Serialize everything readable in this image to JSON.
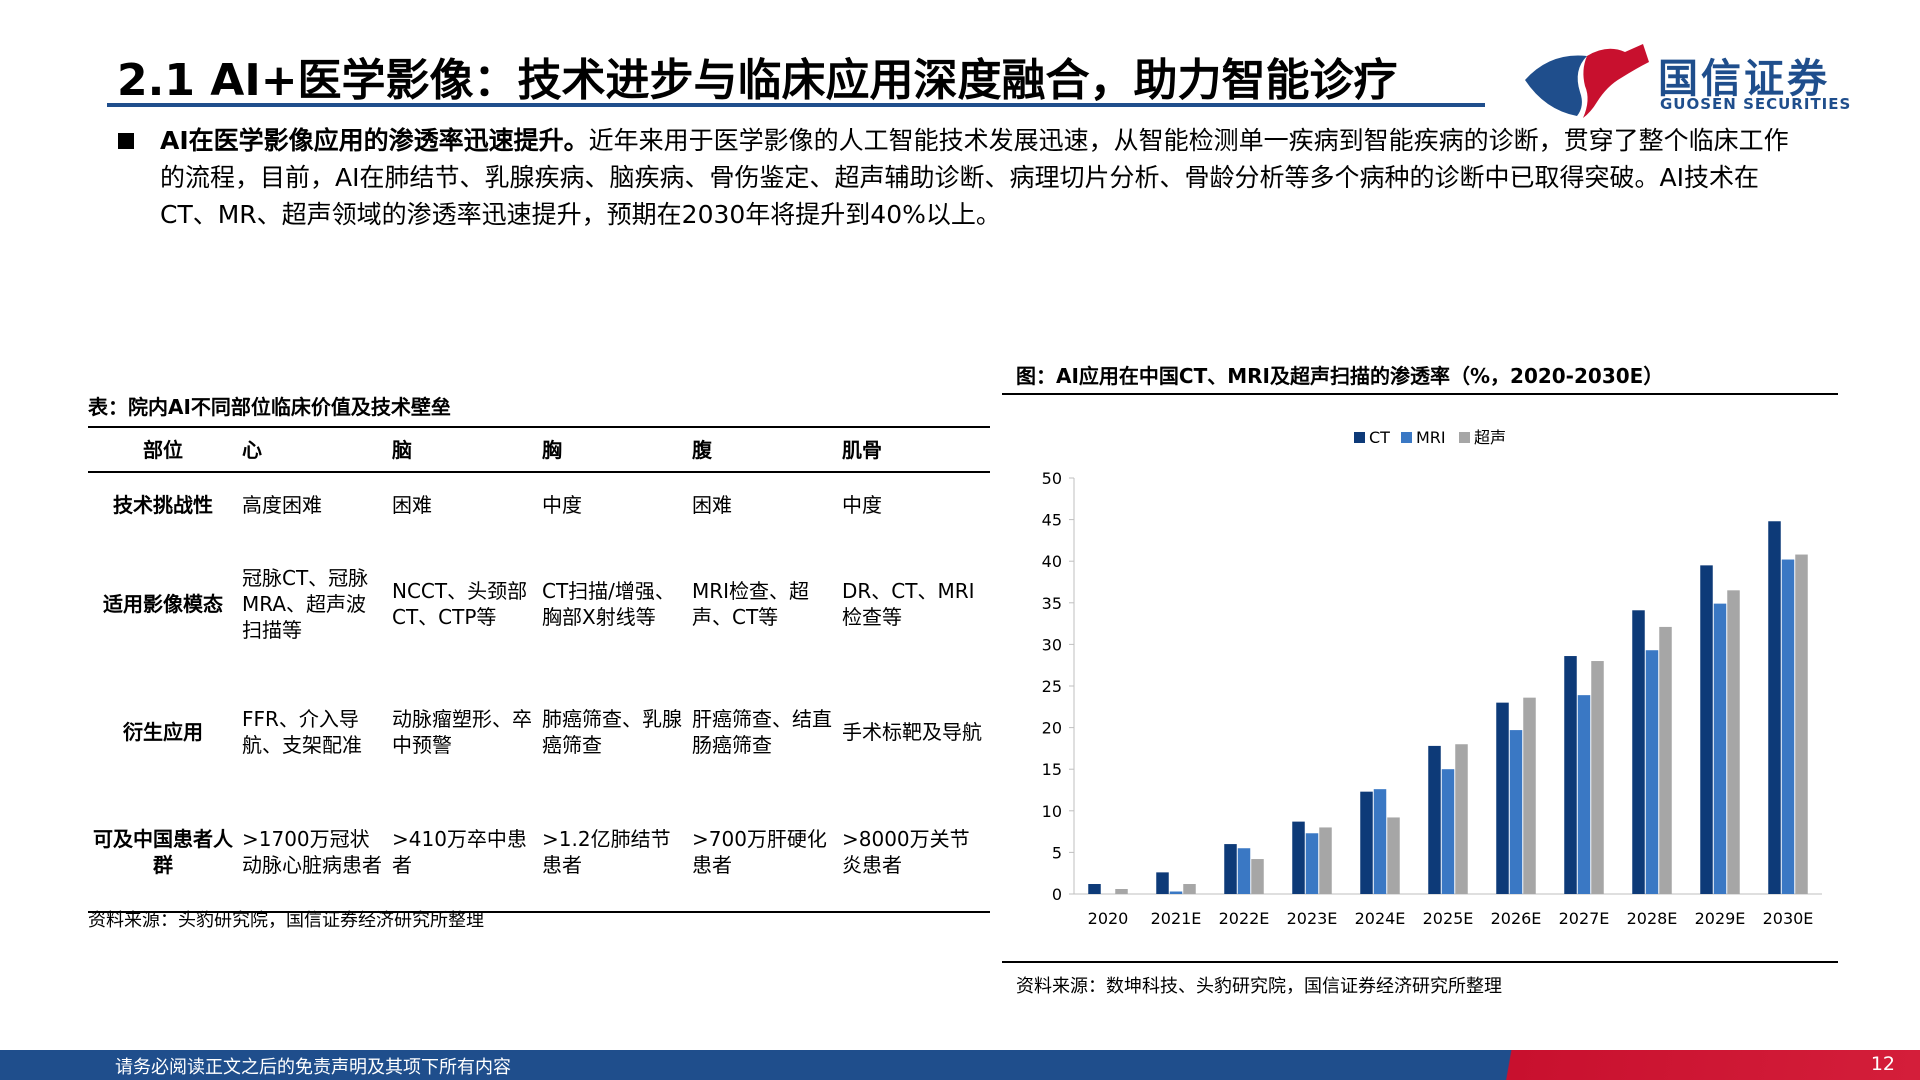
{
  "header": {
    "title": "2.1 AI+医学影像：技术进步与临床应用深度融合，助力智能诊疗",
    "logo_cn": "国信证券",
    "logo_en": "GUOSEN SECURITIES",
    "brand_colors": {
      "blue": "#1f4e8c",
      "red": "#c8102e"
    }
  },
  "intro": {
    "lead": "AI在医学影像应用的渗透率迅速提升。",
    "body": "近年来用于医学影像的人工智能技术发展迅速，从智能检测单一疾病到智能疾病的诊断，贯穿了整个临床工作的流程，目前，AI在肺结节、乳腺疾病、脑疾病、骨伤鉴定、超声辅助诊断、病理切片分析、骨龄分析等多个病种的诊断中已取得突破。AI技术在CT、MR、超声领域的渗透率迅速提升，预期在2030年将提升到40%以上。"
  },
  "table": {
    "title": "表：院内AI不同部位临床价值及技术壁垒",
    "headers": [
      "部位",
      "心",
      "脑",
      "胸",
      "腹",
      "肌骨"
    ],
    "rows": [
      {
        "label": "技术挑战性",
        "cells": [
          "高度困难",
          "困难",
          "中度",
          "困难",
          "中度"
        ]
      },
      {
        "label": "适用影像模态",
        "cells": [
          "冠脉CT、冠脉MRA、超声波扫描等",
          "NCCT、头颈部CT、CTP等",
          "CT扫描/增强、胸部X射线等",
          "MRI检查、超声、CT等",
          "DR、CT、MRI检查等"
        ]
      },
      {
        "label": "衍生应用",
        "cells": [
          "FFR、介入导航、支架配准",
          "动脉瘤塑形、卒中预警",
          "肺癌筛查、乳腺癌筛查",
          "肝癌筛查、结直肠癌筛查",
          "手术标靶及导航"
        ]
      },
      {
        "label": "可及中国患者人群",
        "cells": [
          ">1700万冠状动脉心脏病患者",
          ">410万卒中患者",
          ">1.2亿肺结节患者",
          ">700万肝硬化患者",
          ">8000万关节炎患者"
        ]
      }
    ],
    "source": "资料来源：头豹研究院，国信证券经济研究所整理"
  },
  "chart_data": {
    "type": "bar",
    "title": "图：AI应用在中国CT、MRI及超声扫描的渗透率（%，2020-2030E）",
    "categories": [
      "2020",
      "2021E",
      "2022E",
      "2023E",
      "2024E",
      "2025E",
      "2026E",
      "2027E",
      "2028E",
      "2029E",
      "2030E"
    ],
    "series": [
      {
        "name": "CT",
        "color": "#0d3a78",
        "values": [
          1.2,
          2.6,
          6.0,
          8.7,
          12.3,
          17.8,
          23.0,
          28.6,
          34.1,
          39.5,
          44.8
        ]
      },
      {
        "name": "MRI",
        "color": "#3a78c4",
        "values": [
          0.0,
          0.3,
          5.5,
          7.3,
          12.6,
          15.0,
          19.7,
          23.9,
          29.3,
          34.9,
          40.2
        ]
      },
      {
        "name": "超声",
        "color": "#a6a6a6",
        "values": [
          0.6,
          1.2,
          4.2,
          8.0,
          9.2,
          18.0,
          23.6,
          28.0,
          32.1,
          36.5,
          40.8
        ]
      }
    ],
    "ylim": [
      0,
      50
    ],
    "yticks": [
      0,
      5,
      10,
      15,
      20,
      25,
      30,
      35,
      40,
      45,
      50
    ],
    "legend_position": "top-center",
    "grid": false,
    "source": "资料来源：数坤科技、头豹研究院，国信证券经济研究所整理"
  },
  "footer": {
    "disclaimer": "请务必阅读正文之后的免责声明及其项下所有内容",
    "page": "12"
  }
}
